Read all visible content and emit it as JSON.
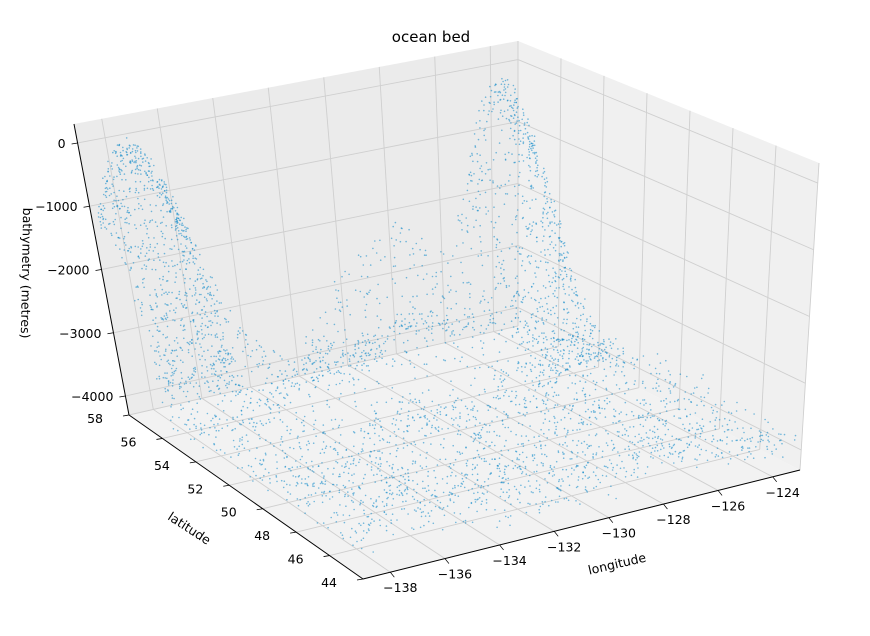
{
  "chart_data": {
    "type": "scatter",
    "title": "ocean bed",
    "xlabel": "longitude",
    "ylabel": "latitude",
    "zlabel": "bathymetry (metres)",
    "xlim": [
      -139,
      -123
    ],
    "ylim": [
      44,
      58
    ],
    "zlim": [
      -4300,
      300
    ],
    "x_ticks": [
      "−138",
      "−136",
      "−134",
      "−132",
      "−130",
      "−128",
      "−126",
      "−124"
    ],
    "y_ticks": [
      "44",
      "46",
      "48",
      "50",
      "52",
      "54",
      "56",
      "58"
    ],
    "z_ticks": [
      "−4000",
      "−3000",
      "−2000",
      "−1000",
      "0"
    ],
    "grid": true,
    "color": "#0a87c8",
    "description_of_data": "scatter of ~6000 soundings: shallow shelf near 0 m at NW corner (~-138,58) and NE corner (~-124,58), deep plain near -4000 m along the southern/western edges, ridges reaching -1500 m near the center-north"
  }
}
